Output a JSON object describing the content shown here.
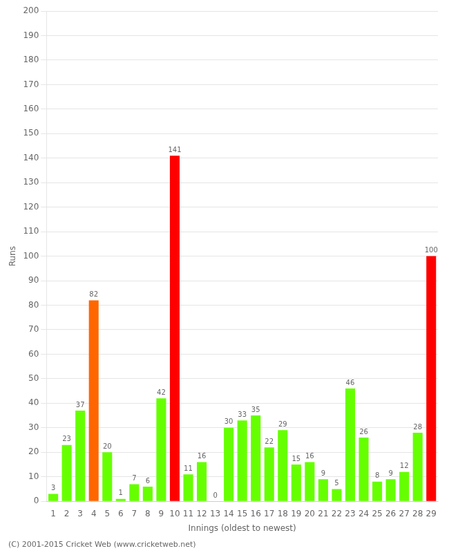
{
  "chart_data": {
    "type": "bar",
    "categories": [
      "1",
      "2",
      "3",
      "4",
      "5",
      "6",
      "7",
      "8",
      "9",
      "10",
      "11",
      "12",
      "13",
      "14",
      "15",
      "16",
      "17",
      "18",
      "19",
      "20",
      "21",
      "22",
      "23",
      "24",
      "25",
      "26",
      "27",
      "28",
      "29"
    ],
    "values": [
      3,
      23,
      37,
      82,
      20,
      1,
      7,
      6,
      42,
      141,
      11,
      16,
      0,
      30,
      33,
      35,
      22,
      29,
      15,
      16,
      9,
      5,
      46,
      26,
      8,
      9,
      12,
      28,
      100
    ],
    "colors": [
      "#66ff00",
      "#66ff00",
      "#66ff00",
      "#ff6600",
      "#66ff00",
      "#66ff00",
      "#66ff00",
      "#66ff00",
      "#66ff00",
      "#ff0000",
      "#66ff00",
      "#66ff00",
      "#66ff00",
      "#66ff00",
      "#66ff00",
      "#66ff00",
      "#66ff00",
      "#66ff00",
      "#66ff00",
      "#66ff00",
      "#66ff00",
      "#66ff00",
      "#66ff00",
      "#66ff00",
      "#66ff00",
      "#66ff00",
      "#66ff00",
      "#66ff00",
      "#ff0000"
    ],
    "xlabel": "Innings (oldest to newest)",
    "ylabel": "Runs",
    "ylim": [
      0,
      200
    ],
    "yticks": [
      0,
      10,
      20,
      30,
      40,
      50,
      60,
      70,
      80,
      90,
      100,
      110,
      120,
      130,
      140,
      150,
      160,
      170,
      180,
      190,
      200
    ],
    "grid": "y",
    "data_labels": true,
    "annotations": [
      "(C) 2001-2015 Cricket Web (www.cricketweb.net)"
    ]
  }
}
